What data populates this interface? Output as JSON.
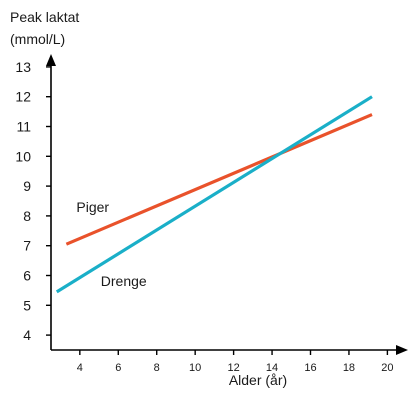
{
  "chart_data": {
    "type": "line",
    "ylabel_line1": "Peak laktat",
    "ylabel_line2": "(mmol/L)",
    "xlabel": "Alder (år)",
    "xlim": [
      2.5,
      20.5
    ],
    "ylim": [
      3.5,
      13.5
    ],
    "xticks": [
      4,
      6,
      8,
      10,
      12,
      14,
      16,
      18,
      20
    ],
    "yticks": [
      4,
      5,
      6,
      7,
      8,
      9,
      10,
      11,
      12,
      13
    ],
    "grid": false,
    "series": [
      {
        "name": "Piger",
        "color": "#e9522b",
        "x": [
          3.3,
          19.2
        ],
        "y": [
          7.05,
          11.4
        ]
      },
      {
        "name": "Drenge",
        "color": "#1aafc8",
        "x": [
          2.8,
          19.2
        ],
        "y": [
          5.45,
          12.0
        ]
      }
    ],
    "axis_color": "#000000"
  }
}
